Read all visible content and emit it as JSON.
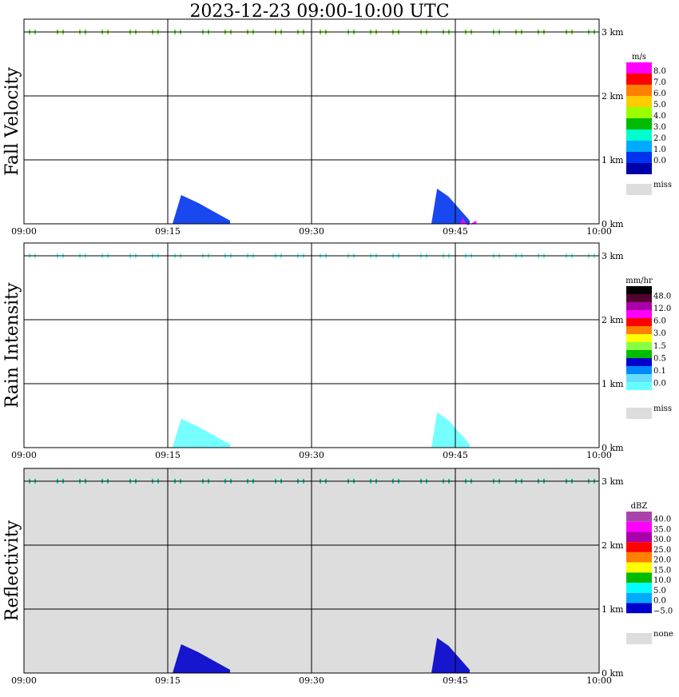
{
  "title": "2023-12-23   09:00-10:00 UTC",
  "chart_data": [
    {
      "type": "heatmap",
      "ylabel": "Fall Velocity",
      "x_ticks": [
        "09:00",
        "09:15",
        "09:30",
        "09:45",
        "10:00"
      ],
      "y_ticks": [
        "0 km",
        "1 km",
        "2 km",
        "3 km"
      ],
      "xlim": [
        "09:00",
        "10:00"
      ],
      "ylim_km": [
        0,
        3.2
      ],
      "background": "#ffffff",
      "grid": true,
      "colorbar": {
        "unit": "m/s",
        "labels": [
          "8.0",
          "7.0",
          "6.0",
          "5.0",
          "4.0",
          "3.0",
          "2.0",
          "1.0",
          "0.0"
        ],
        "colors": [
          "#ff00ff",
          "#ff0000",
          "#ff8000",
          "#ffcc00",
          "#99ff00",
          "#00bb00",
          "#00ffcc",
          "#00aaff",
          "#0033ee",
          "#0000aa"
        ],
        "missing_label": "miss",
        "missing_color": "#dddddd"
      },
      "echo_regions": [
        {
          "start_min": 15.5,
          "end_min": 21.5,
          "top_km": 0.45,
          "color": "#0033ee"
        },
        {
          "start_min": 42.5,
          "end_min": 46.5,
          "top_km": 0.55,
          "color": "#0033ee"
        },
        {
          "start_min": 45.5,
          "end_min": 47.2,
          "top_km": 0.1,
          "color": "#ff00ff"
        }
      ],
      "top_line_color": "#66dd22"
    },
    {
      "type": "heatmap",
      "ylabel": "Rain Intensity",
      "x_ticks": [
        "09:00",
        "09:15",
        "09:30",
        "09:45",
        "10:00"
      ],
      "y_ticks": [
        "0 km",
        "1 km",
        "2 km",
        "3 km"
      ],
      "xlim": [
        "09:00",
        "10:00"
      ],
      "ylim_km": [
        0,
        3.2
      ],
      "background": "#ffffff",
      "grid": true,
      "colorbar": {
        "unit": "mm/hr",
        "labels": [
          "48.0",
          "12.0",
          "6.0",
          "3.0",
          "1.5",
          "0.5",
          "0.1",
          "0.0"
        ],
        "colors": [
          "#000000",
          "#550033",
          "#aa00aa",
          "#ff00ff",
          "#ff0000",
          "#ff8000",
          "#ffff00",
          "#88ff44",
          "#00bb00",
          "#0000cc",
          "#0088ff",
          "#66ddff",
          "#66ffff",
          "#ffffff"
        ],
        "missing_label": "miss",
        "missing_color": "#dddddd"
      },
      "echo_regions": [
        {
          "start_min": 15.5,
          "end_min": 21.5,
          "top_km": 0.45,
          "color": "#66ffff"
        },
        {
          "start_min": 42.5,
          "end_min": 46.5,
          "top_km": 0.55,
          "color": "#66ffff"
        }
      ],
      "top_line_color": "#66ffff"
    },
    {
      "type": "heatmap",
      "ylabel": "Reflectivity",
      "x_ticks": [
        "09:00",
        "09:15",
        "09:30",
        "09:45",
        "10:00"
      ],
      "y_ticks": [
        "0 km",
        "1 km",
        "2 km",
        "3 km"
      ],
      "xlim": [
        "09:00",
        "10:00"
      ],
      "ylim_km": [
        0,
        3.2
      ],
      "background": "#dddddd",
      "grid": true,
      "colorbar": {
        "unit": "dBZ",
        "labels": [
          "40.0",
          "35.0",
          "30.0",
          "25.0",
          "20.0",
          "15.0",
          "10.0",
          "5.0",
          "0.0",
          "−5.0"
        ],
        "colors": [
          "#aa44aa",
          "#ff00ff",
          "#aa00aa",
          "#ff0000",
          "#ff8000",
          "#ffff00",
          "#00bb00",
          "#00ffff",
          "#00aaff",
          "#0000cc",
          "#ffffff"
        ],
        "missing_label": "none",
        "missing_color": "#dddddd"
      },
      "echo_regions": [
        {
          "start_min": 15.5,
          "end_min": 21.5,
          "top_km": 0.45,
          "color": "#0000cc"
        },
        {
          "start_min": 42.5,
          "end_min": 46.5,
          "top_km": 0.55,
          "color": "#0000cc"
        }
      ],
      "top_line_color": "#00ccaa"
    }
  ]
}
